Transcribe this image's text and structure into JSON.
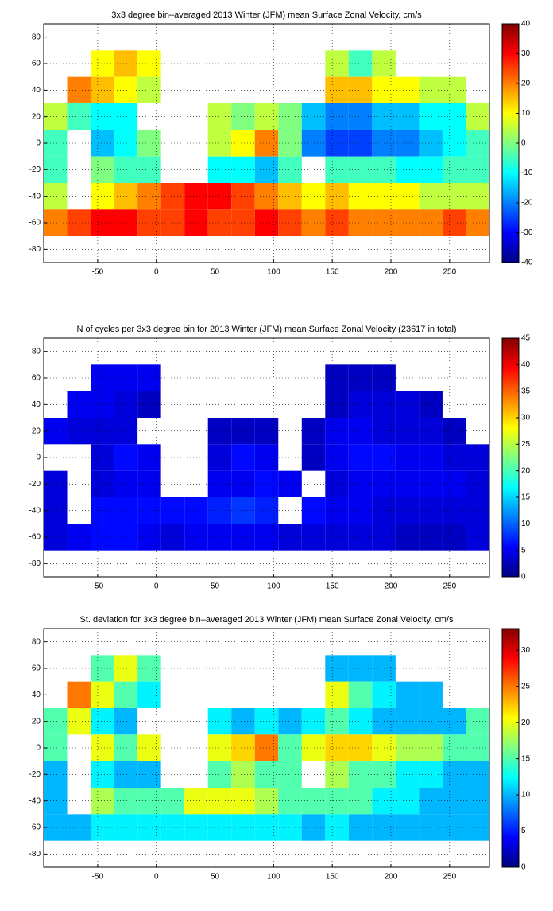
{
  "chart_data": [
    {
      "type": "heatmap",
      "title": "3x3 degree bin–averaged 2013 Winter (JFM) mean Surface Zonal Velocity, cm/s",
      "x": [
        -86,
        -66,
        -46,
        -26,
        -6,
        14,
        34,
        54,
        74,
        94,
        114,
        134,
        154,
        174,
        194,
        214,
        234,
        254,
        274
      ],
      "y": [
        60,
        40,
        20,
        0,
        -20,
        -40,
        -60
      ],
      "values": [
        [
          null,
          null,
          10,
          15,
          10,
          null,
          null,
          null,
          null,
          null,
          null,
          null,
          5,
          -5,
          5,
          null,
          null,
          null,
          null
        ],
        [
          null,
          20,
          15,
          10,
          5,
          null,
          null,
          null,
          null,
          null,
          null,
          null,
          15,
          15,
          10,
          10,
          5,
          5,
          null
        ],
        [
          5,
          -5,
          -10,
          -10,
          null,
          null,
          null,
          5,
          0,
          5,
          0,
          -15,
          -20,
          -20,
          -15,
          -15,
          -10,
          -10,
          5
        ],
        [
          -5,
          null,
          -15,
          -10,
          0,
          null,
          null,
          5,
          10,
          20,
          0,
          -20,
          -25,
          -25,
          -20,
          -20,
          -15,
          -10,
          -5
        ],
        [
          -5,
          null,
          0,
          -5,
          -5,
          null,
          null,
          -10,
          -10,
          -15,
          -5,
          null,
          -5,
          -5,
          -5,
          -10,
          -10,
          -5,
          -5
        ],
        [
          5,
          null,
          10,
          15,
          20,
          25,
          30,
          30,
          25,
          20,
          15,
          10,
          15,
          10,
          10,
          10,
          5,
          5,
          5
        ],
        [
          20,
          25,
          30,
          30,
          25,
          25,
          30,
          25,
          25,
          30,
          25,
          20,
          25,
          20,
          20,
          20,
          20,
          25,
          20
        ]
      ],
      "xlim": [
        -96,
        284
      ],
      "ylim": [
        -90,
        90
      ],
      "xticks": [
        -50,
        0,
        50,
        100,
        150,
        200,
        250
      ],
      "yticks": [
        -80,
        -60,
        -40,
        -20,
        0,
        20,
        40,
        60,
        80
      ],
      "clim": [
        -40,
        40
      ],
      "cticks": [
        -40,
        -30,
        -20,
        -10,
        0,
        10,
        20,
        30,
        40
      ],
      "colormap": "jet",
      "grid": true
    },
    {
      "type": "heatmap",
      "title": "N of cycles per 3x3 degree bin for 2013 Winter (JFM) mean Surface Zonal Velocity (23617 in total)",
      "x": [
        -86,
        -66,
        -46,
        -26,
        -6,
        14,
        34,
        54,
        74,
        94,
        114,
        134,
        154,
        174,
        194,
        214,
        234,
        254,
        274
      ],
      "y": [
        60,
        40,
        20,
        0,
        -20,
        -40,
        -60
      ],
      "values": [
        [
          null,
          null,
          5,
          5,
          5,
          null,
          null,
          null,
          null,
          null,
          null,
          null,
          3,
          3,
          3,
          null,
          null,
          null,
          null
        ],
        [
          null,
          5,
          5,
          4,
          3,
          null,
          null,
          null,
          null,
          null,
          null,
          null,
          3,
          4,
          4,
          4,
          3,
          null,
          null
        ],
        [
          5,
          4,
          4,
          4,
          null,
          null,
          null,
          3,
          3,
          3,
          null,
          3,
          5,
          5,
          4,
          4,
          4,
          3,
          null
        ],
        [
          null,
          null,
          4,
          6,
          5,
          null,
          null,
          4,
          6,
          5,
          null,
          3,
          5,
          6,
          6,
          5,
          5,
          4,
          4
        ],
        [
          4,
          null,
          4,
          5,
          5,
          null,
          null,
          5,
          5,
          6,
          5,
          null,
          4,
          5,
          5,
          5,
          5,
          5,
          4
        ],
        [
          4,
          null,
          6,
          6,
          6,
          6,
          6,
          7,
          8,
          7,
          null,
          6,
          5,
          5,
          4,
          4,
          4,
          4,
          4
        ],
        [
          4,
          5,
          6,
          6,
          5,
          4,
          5,
          5,
          5,
          5,
          4,
          4,
          4,
          4,
          4,
          3,
          3,
          3,
          4
        ]
      ],
      "xlim": [
        -96,
        284
      ],
      "ylim": [
        -90,
        90
      ],
      "xticks": [
        -50,
        0,
        50,
        100,
        150,
        200,
        250
      ],
      "yticks": [
        -80,
        -60,
        -40,
        -20,
        0,
        20,
        40,
        60,
        80
      ],
      "clim": [
        0,
        45
      ],
      "cticks": [
        0,
        5,
        10,
        15,
        20,
        25,
        30,
        35,
        40,
        45
      ],
      "colormap": "jet",
      "grid": true
    },
    {
      "type": "heatmap",
      "title": "St. deviation for 3x3 degree bin–averaged 2013 Winter (JFM) mean Surface Zonal Velocity, cm/s",
      "x": [
        -86,
        -66,
        -46,
        -26,
        -6,
        14,
        34,
        54,
        74,
        94,
        114,
        134,
        154,
        174,
        194,
        214,
        234,
        254,
        274
      ],
      "y": [
        60,
        40,
        20,
        0,
        -20,
        -40,
        -60
      ],
      "values": [
        [
          null,
          null,
          15,
          20,
          15,
          null,
          null,
          null,
          null,
          null,
          null,
          null,
          10,
          10,
          10,
          null,
          null,
          null,
          null
        ],
        [
          null,
          25,
          20,
          15,
          12,
          null,
          null,
          null,
          null,
          null,
          null,
          null,
          20,
          15,
          12,
          10,
          10,
          null,
          null
        ],
        [
          15,
          20,
          12,
          10,
          null,
          null,
          null,
          12,
          10,
          12,
          10,
          12,
          15,
          12,
          10,
          10,
          10,
          10,
          15
        ],
        [
          15,
          null,
          20,
          15,
          20,
          null,
          null,
          20,
          22,
          25,
          15,
          20,
          22,
          22,
          20,
          18,
          18,
          15,
          15
        ],
        [
          10,
          null,
          12,
          10,
          10,
          null,
          null,
          15,
          18,
          15,
          15,
          null,
          18,
          15,
          15,
          12,
          12,
          10,
          10
        ],
        [
          10,
          null,
          18,
          15,
          15,
          15,
          20,
          20,
          20,
          18,
          15,
          15,
          15,
          15,
          12,
          12,
          10,
          10,
          10
        ],
        [
          10,
          10,
          12,
          12,
          12,
          12,
          12,
          12,
          12,
          12,
          12,
          10,
          12,
          10,
          10,
          10,
          10,
          10,
          10
        ]
      ],
      "xlim": [
        -96,
        284
      ],
      "ylim": [
        -90,
        90
      ],
      "xticks": [
        -50,
        0,
        50,
        100,
        150,
        200,
        250
      ],
      "yticks": [
        -80,
        -60,
        -40,
        -20,
        0,
        20,
        40,
        60,
        80
      ],
      "clim": [
        0,
        33
      ],
      "cticks": [
        0,
        5,
        10,
        15,
        20,
        25,
        30
      ],
      "colormap": "jet",
      "grid": true
    }
  ]
}
